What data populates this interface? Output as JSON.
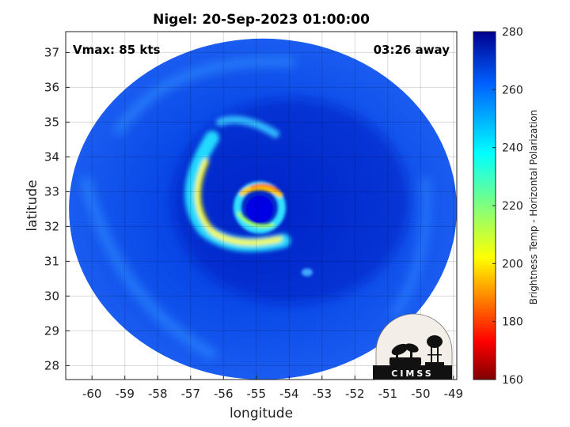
{
  "chart_data": {
    "type": "heatmap",
    "title": "Nigel: 20-Sep-2023 01:00:00",
    "xlabel": "longitude",
    "ylabel": "latitude",
    "xlim": [
      -60.8,
      -48.9
    ],
    "ylim": [
      27.6,
      37.6
    ],
    "xticks": [
      -60,
      -59,
      -58,
      -57,
      -56,
      -55,
      -54,
      -53,
      -52,
      -51,
      -50,
      -49
    ],
    "yticks": [
      28,
      29,
      30,
      31,
      32,
      33,
      34,
      35,
      36,
      37
    ],
    "grid": true,
    "annotations": {
      "vmax": "Vmax: 85 kts",
      "time_away": "03:26 away"
    },
    "storm_center": {
      "lon": -54.9,
      "lat": 32.5
    },
    "swath": {
      "center_lon": -54.8,
      "center_lat": 32.5,
      "radius_lon": 5.9,
      "radius_lat": 4.9
    },
    "colorbar": {
      "label": "Brightness Temp - Horizontal Polarization",
      "range": [
        160,
        280
      ],
      "ticks": [
        160,
        180,
        200,
        220,
        240,
        260,
        280
      ],
      "colormap": "jet"
    },
    "features": {
      "background_temp_k": 262,
      "eye_temp_k": 268,
      "eyewall_north_min_k": 188,
      "spiral_band_min_k": 205
    },
    "logo": "CIMSS"
  }
}
